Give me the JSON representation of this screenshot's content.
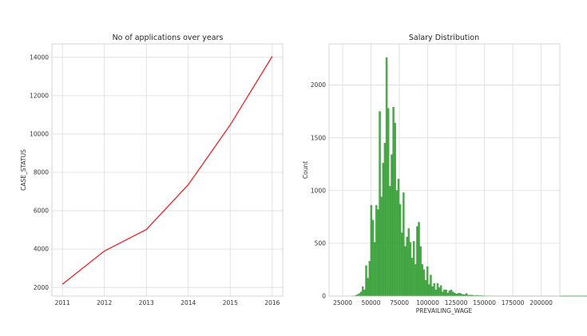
{
  "chart_data": [
    {
      "type": "line",
      "title": "No of applications over years",
      "xlabel": "",
      "ylabel": "CASE_STATUS",
      "x": [
        2011,
        2012,
        2013,
        2014,
        2015,
        2016
      ],
      "series": [
        {
          "values": [
            2170,
            3900,
            5020,
            7360,
            10480,
            14050
          ],
          "color": "#e8252a"
        }
      ],
      "xlim": [
        2010.75,
        2016.25
      ],
      "ylim": [
        1550,
        14700
      ],
      "xticks": [
        "2011",
        "2012",
        "2013",
        "2014",
        "2015",
        "2016"
      ],
      "yticks": [
        "2000",
        "4000",
        "6000",
        "8000",
        "10000",
        "12000",
        "14000"
      ],
      "grid": true
    },
    {
      "type": "bar",
      "title": "Salary Distribution",
      "xlabel": "PREVAILING_WAGE",
      "ylabel": "Count",
      "bin_start": 18000,
      "bin_width": 1500,
      "counts": [
        0,
        0,
        0,
        0,
        0,
        0,
        0,
        0,
        0,
        0,
        2,
        3,
        8,
        15,
        25,
        40,
        90,
        60,
        290,
        170,
        330,
        860,
        720,
        510,
        860,
        820,
        1750,
        940,
        1260,
        1450,
        2260,
        1780,
        1040,
        1340,
        1790,
        1640,
        1000,
        1110,
        870,
        600,
        980,
        470,
        560,
        640,
        510,
        360,
        520,
        300,
        660,
        700,
        470,
        300,
        250,
        150,
        280,
        110,
        200,
        90,
        120,
        60,
        120,
        80,
        100,
        40,
        60,
        60,
        30,
        50,
        60,
        40,
        30,
        20,
        25,
        30,
        20,
        15,
        15,
        25,
        10,
        10,
        10,
        8,
        5,
        8,
        5,
        5,
        5,
        4,
        3,
        4,
        3,
        3,
        3,
        2,
        2,
        2,
        2,
        2,
        2,
        1,
        1,
        1,
        1,
        1,
        1,
        1,
        1,
        1,
        1,
        1,
        1,
        1,
        1,
        1,
        1,
        1,
        1,
        1,
        1,
        1,
        1,
        1,
        1,
        1,
        1,
        1,
        1,
        1,
        1,
        1,
        1,
        1,
        1,
        1,
        1,
        1,
        1,
        1,
        1,
        1,
        1,
        1,
        1,
        1,
        1,
        1,
        1,
        1,
        1,
        1,
        1,
        1,
        1,
        1,
        1,
        1,
        1,
        1,
        1,
        1,
        1,
        1,
        1,
        1,
        1,
        1,
        1,
        1,
        1,
        1,
        1,
        1,
        1,
        1,
        1,
        1,
        1
      ],
      "xlim": [
        13000,
        216500
      ],
      "ylim": [
        0,
        2390
      ],
      "xticks": [
        "25000",
        "50000",
        "75000",
        "100000",
        "125000",
        "150000",
        "175000",
        "200000"
      ],
      "yticks": [
        "0",
        "500",
        "1000",
        "1500",
        "2000"
      ],
      "bar_color": "#2ca02c",
      "grid": true
    }
  ]
}
